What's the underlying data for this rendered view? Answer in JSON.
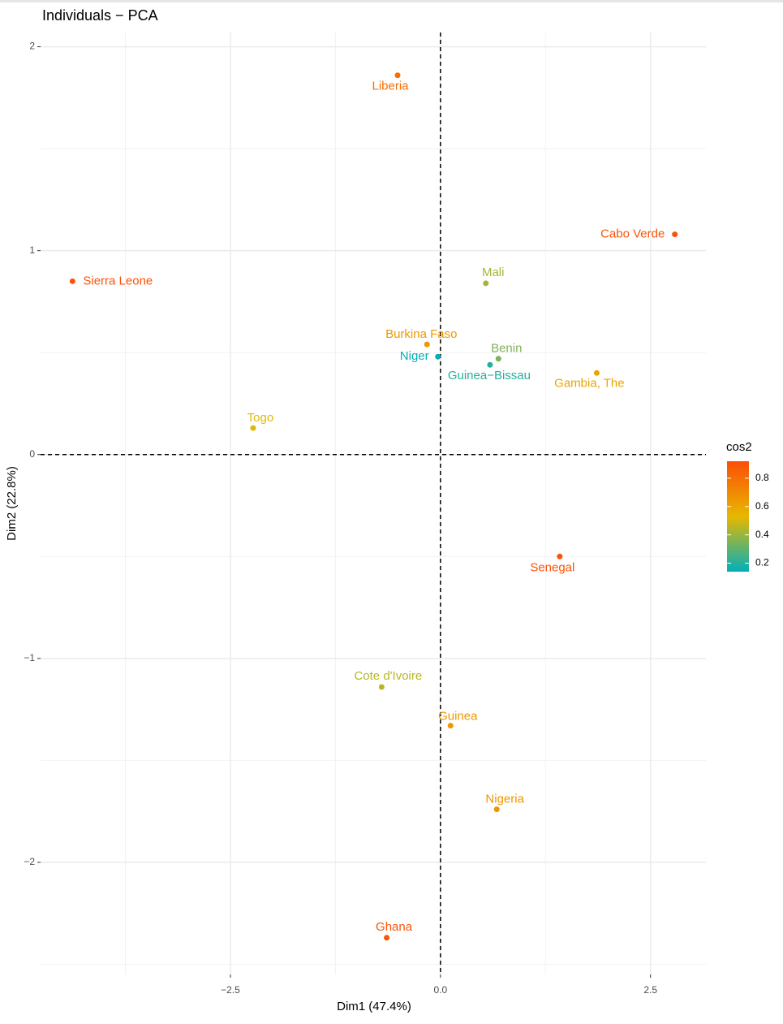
{
  "chart_data": {
    "type": "scatter",
    "title": "Individuals − PCA",
    "x_label": "Dim1 (47.4%)",
    "y_label": "Dim2 (22.8%)",
    "points": [
      {
        "name": "Liberia",
        "x": -0.51,
        "y": 1.86,
        "cos2": 0.8
      },
      {
        "name": "Cabo Verde",
        "x": 2.79,
        "y": 1.08,
        "cos2": 0.9
      },
      {
        "name": "Sierra Leone",
        "x": -4.38,
        "y": 0.85,
        "cos2": 0.9
      },
      {
        "name": "Mali",
        "x": 0.54,
        "y": 0.84,
        "cos2": 0.42
      },
      {
        "name": "Burkina Faso",
        "x": -0.16,
        "y": 0.54,
        "cos2": 0.65
      },
      {
        "name": "Niger",
        "x": -0.03,
        "y": 0.48,
        "cos2": 0.15
      },
      {
        "name": "Benin",
        "x": 0.69,
        "y": 0.47,
        "cos2": 0.35
      },
      {
        "name": "Guinea−Bissau",
        "x": 0.59,
        "y": 0.44,
        "cos2": 0.2
      },
      {
        "name": "Gambia, The",
        "x": 1.86,
        "y": 0.4,
        "cos2": 0.6
      },
      {
        "name": "Togo",
        "x": -2.23,
        "y": 0.13,
        "cos2": 0.52
      },
      {
        "name": "Senegal",
        "x": 1.42,
        "y": -0.5,
        "cos2": 0.9
      },
      {
        "name": "Cote d'Ivoire",
        "x": -0.7,
        "y": -1.14,
        "cos2": 0.45
      },
      {
        "name": "Guinea",
        "x": 0.12,
        "y": -1.33,
        "cos2": 0.65
      },
      {
        "name": "Nigeria",
        "x": 0.67,
        "y": -1.74,
        "cos2": 0.65
      },
      {
        "name": "Ghana",
        "x": -0.64,
        "y": -2.37,
        "cos2": 0.9
      }
    ],
    "xlim": [
      -4.76,
      3.16
    ],
    "ylim": [
      -2.55,
      2.07
    ],
    "xticks": [
      {
        "value": -2.5,
        "label": "−2.5"
      },
      {
        "value": 0,
        "label": "0.0"
      },
      {
        "value": 2.5,
        "label": "2.5"
      }
    ],
    "yticks": [
      {
        "value": -2,
        "label": "−2"
      },
      {
        "value": -1,
        "label": "−1"
      },
      0,
      1,
      2
    ],
    "grid": true,
    "legend": {
      "title": "cos2",
      "colors": [
        "#00AFBB",
        "#E7B800",
        "#FC4E07"
      ],
      "lim": [
        0.14,
        0.92
      ],
      "ticks": [
        0.2,
        0.4,
        0.6,
        0.8
      ]
    }
  }
}
